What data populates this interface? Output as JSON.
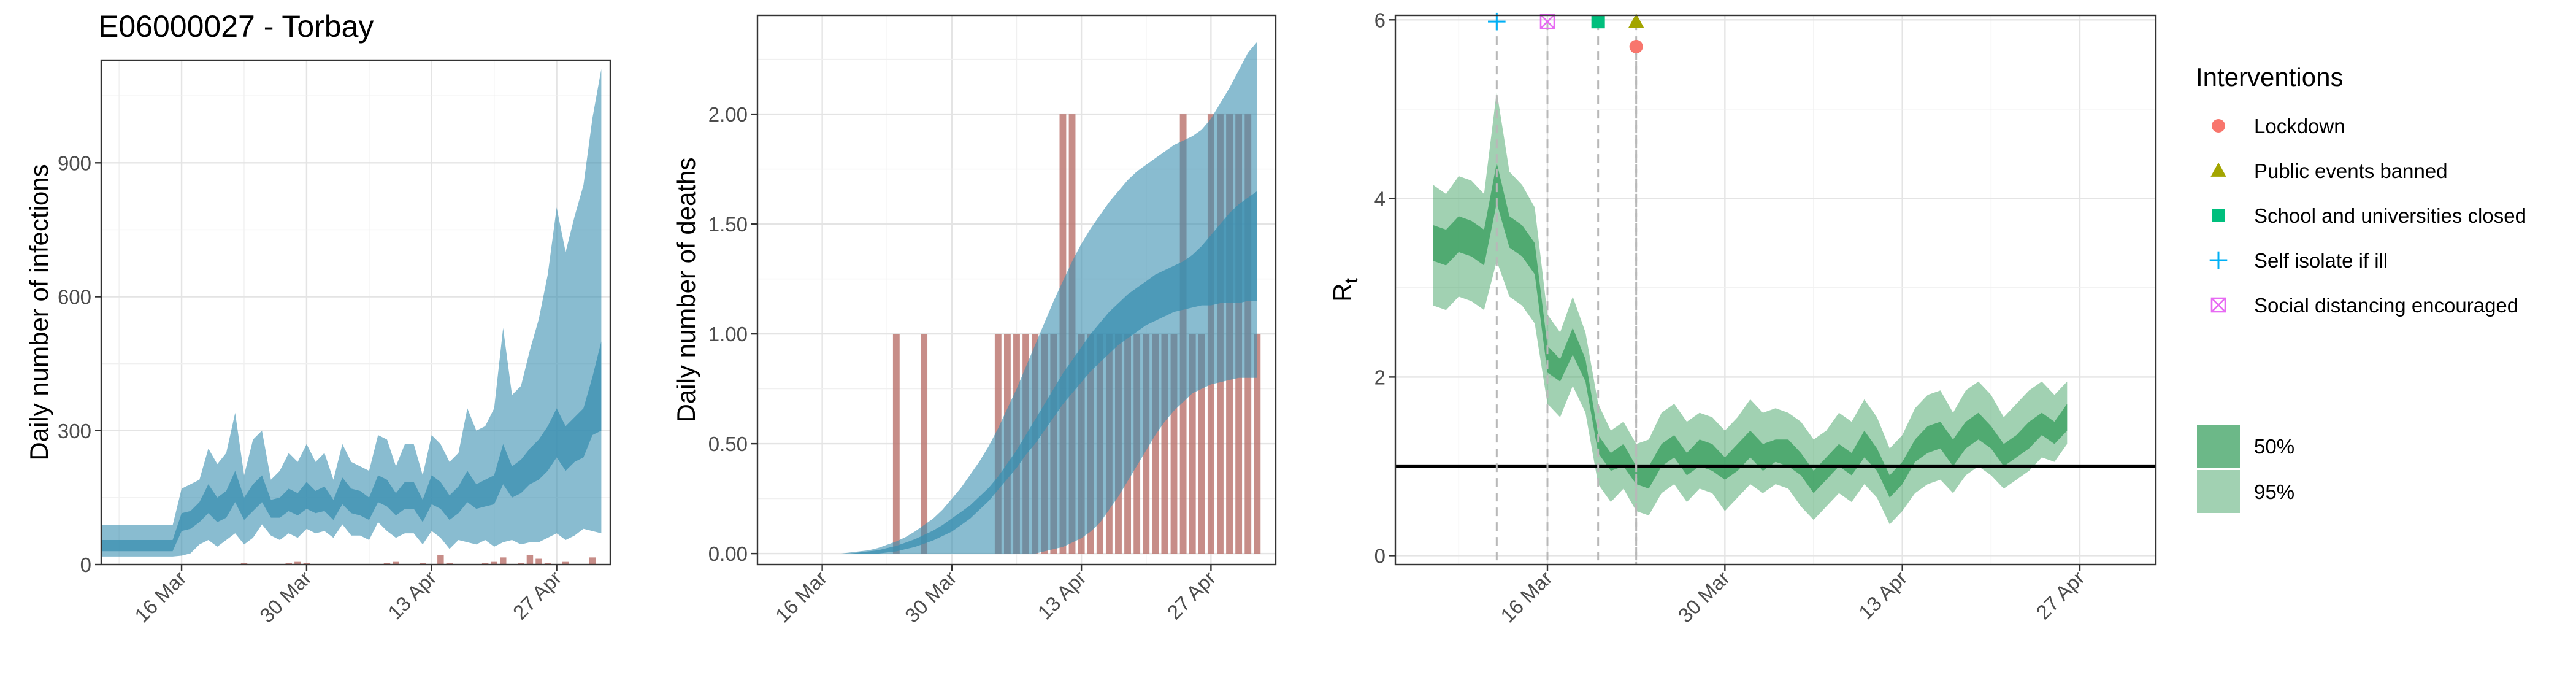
{
  "title": "E06000027 - Torbay",
  "colors": {
    "infection_band": "#3a8fb0",
    "death_bar": "#b9706a",
    "rt_band": "#2e9a55",
    "lockdown": "#f8766d",
    "public_events": "#a3a500",
    "school": "#00bf7d",
    "self_isolate": "#00b0f6",
    "social_distancing": "#e76bf3"
  },
  "chart_data": [
    {
      "type": "area",
      "panel": "infections",
      "ylabel": "Daily number of infections",
      "ylim": [
        0,
        1130
      ],
      "yticks": [
        0,
        300,
        600,
        900
      ],
      "ytick_labels": [
        "0",
        "300",
        "600",
        "900"
      ],
      "xticks": [
        "2020-03-16",
        "2020-03-30",
        "2020-04-13",
        "2020-04-27"
      ],
      "xtick_labels": [
        "16 Mar",
        "30 Mar",
        "13 Apr",
        "27 Apr"
      ],
      "x_start": "2020-03-07",
      "cases": [
        0,
        0,
        0,
        0,
        0,
        0,
        0,
        0,
        0,
        0,
        0,
        0,
        0,
        0,
        0,
        0,
        3,
        0,
        0,
        0,
        0,
        3,
        6,
        3,
        0,
        0,
        0,
        0,
        0,
        0,
        0,
        0,
        3,
        6,
        0,
        0,
        3,
        0,
        22,
        3,
        0,
        0,
        0,
        3,
        6,
        16,
        0,
        3,
        22,
        13,
        3,
        0,
        6,
        0,
        0,
        16,
        0
      ],
      "series": [
        {
          "name": "95%",
          "lower": [
            18,
            18,
            18,
            18,
            18,
            18,
            18,
            18,
            18,
            20,
            25,
            45,
            55,
            40,
            55,
            70,
            45,
            60,
            90,
            65,
            55,
            70,
            60,
            80,
            70,
            75,
            60,
            90,
            65,
            65,
            55,
            95,
            75,
            60,
            70,
            70,
            45,
            75,
            60,
            35,
            55,
            50,
            45,
            55,
            40,
            50,
            55,
            45,
            50,
            50,
            60,
            70,
            55,
            65,
            80,
            75,
            70
          ],
          "upper": [
            88,
            88,
            88,
            88,
            88,
            88,
            88,
            88,
            88,
            170,
            180,
            190,
            260,
            225,
            250,
            340,
            200,
            280,
            300,
            190,
            210,
            250,
            230,
            270,
            230,
            250,
            190,
            270,
            230,
            220,
            210,
            290,
            280,
            220,
            270,
            270,
            200,
            290,
            270,
            230,
            250,
            350,
            300,
            310,
            350,
            530,
            380,
            400,
            480,
            550,
            650,
            800,
            700,
            780,
            850,
            1000,
            1110
          ]
        },
        {
          "name": "50%",
          "lower": [
            30,
            30,
            30,
            30,
            30,
            30,
            30,
            30,
            30,
            75,
            80,
            95,
            115,
            95,
            105,
            140,
            100,
            120,
            140,
            105,
            105,
            120,
            110,
            125,
            115,
            120,
            100,
            135,
            115,
            110,
            100,
            140,
            130,
            110,
            125,
            125,
            95,
            135,
            125,
            100,
            115,
            140,
            125,
            130,
            135,
            180,
            150,
            160,
            180,
            190,
            210,
            240,
            210,
            230,
            240,
            290,
            300
          ],
          "upper": [
            55,
            55,
            55,
            55,
            55,
            55,
            55,
            55,
            55,
            115,
            120,
            140,
            180,
            150,
            165,
            210,
            150,
            180,
            200,
            145,
            150,
            170,
            160,
            185,
            165,
            175,
            145,
            195,
            170,
            165,
            150,
            200,
            190,
            160,
            185,
            185,
            145,
            200,
            185,
            155,
            175,
            210,
            180,
            190,
            200,
            270,
            220,
            235,
            260,
            280,
            310,
            350,
            310,
            330,
            350,
            420,
            500
          ]
        }
      ]
    },
    {
      "type": "area",
      "panel": "deaths",
      "ylabel": "Daily number of deaths",
      "ylim": [
        -0.05,
        2.45
      ],
      "yticks": [
        0,
        0.5,
        1,
        1.5,
        2
      ],
      "ytick_labels": [
        "0.00",
        "0.50",
        "1.00",
        "1.50",
        "2.00"
      ],
      "xticks": [
        "2020-03-16",
        "2020-03-30",
        "2020-04-13",
        "2020-04-27"
      ],
      "xtick_labels": [
        "16 Mar",
        "30 Mar",
        "13 Apr",
        "27 Apr"
      ],
      "x_start": "2020-03-14",
      "deaths": [
        0,
        0,
        0,
        0,
        0,
        0,
        0,
        0,
        0,
        0,
        1,
        0,
        0,
        1,
        0,
        0,
        0,
        0,
        0,
        0,
        0,
        1,
        1,
        1,
        1,
        1,
        1,
        1,
        2,
        2,
        1,
        1,
        1,
        1,
        1,
        1,
        1,
        1,
        1,
        1,
        1,
        2,
        1,
        1,
        2,
        2,
        2,
        2,
        2,
        1
      ],
      "series": [
        {
          "name": "95%",
          "lower": [
            0,
            0,
            0,
            0,
            0,
            0,
            0,
            0,
            0,
            0,
            0,
            0,
            0,
            0,
            0,
            0,
            0,
            0,
            0,
            0,
            0,
            0,
            0,
            0,
            0,
            0,
            0.01,
            0.02,
            0.03,
            0.05,
            0.07,
            0.1,
            0.14,
            0.2,
            0.26,
            0.33,
            0.4,
            0.47,
            0.54,
            0.6,
            0.65,
            0.69,
            0.73,
            0.75,
            0.77,
            0.78,
            0.79,
            0.8,
            0.8,
            0.8
          ],
          "upper": [
            0,
            0,
            0,
            0,
            0,
            0.005,
            0.01,
            0.015,
            0.025,
            0.04,
            0.055,
            0.075,
            0.1,
            0.13,
            0.16,
            0.2,
            0.25,
            0.3,
            0.36,
            0.42,
            0.49,
            0.57,
            0.66,
            0.75,
            0.85,
            0.95,
            1.05,
            1.15,
            1.24,
            1.33,
            1.41,
            1.48,
            1.54,
            1.6,
            1.65,
            1.7,
            1.74,
            1.77,
            1.8,
            1.83,
            1.86,
            1.88,
            1.9,
            1.93,
            1.98,
            2.05,
            2.12,
            2.2,
            2.28,
            2.33
          ]
        },
        {
          "name": "50%",
          "lower": [
            0,
            0,
            0,
            0,
            0,
            0,
            0,
            0,
            0,
            0.005,
            0.01,
            0.02,
            0.03,
            0.045,
            0.06,
            0.08,
            0.1,
            0.13,
            0.16,
            0.2,
            0.24,
            0.29,
            0.34,
            0.39,
            0.45,
            0.5,
            0.56,
            0.62,
            0.68,
            0.73,
            0.78,
            0.83,
            0.87,
            0.91,
            0.95,
            0.98,
            1.01,
            1.04,
            1.06,
            1.08,
            1.1,
            1.11,
            1.12,
            1.13,
            1.13,
            1.14,
            1.14,
            1.14,
            1.15,
            1.15
          ],
          "upper": [
            0,
            0,
            0,
            0,
            0,
            0,
            0.005,
            0.01,
            0.015,
            0.025,
            0.035,
            0.05,
            0.065,
            0.085,
            0.105,
            0.13,
            0.16,
            0.19,
            0.22,
            0.26,
            0.3,
            0.35,
            0.41,
            0.47,
            0.54,
            0.61,
            0.68,
            0.75,
            0.82,
            0.88,
            0.94,
            1,
            1.05,
            1.1,
            1.14,
            1.18,
            1.21,
            1.24,
            1.27,
            1.29,
            1.31,
            1.33,
            1.36,
            1.4,
            1.45,
            1.5,
            1.55,
            1.59,
            1.62,
            1.65
          ]
        }
      ]
    },
    {
      "type": "area",
      "panel": "rt",
      "ylabel": "R",
      "ylabel_sub": "t",
      "ylim": [
        -0.1,
        6.05
      ],
      "yticks": [
        0,
        2,
        4,
        6
      ],
      "ytick_labels": [
        "0",
        "2",
        "4",
        "6"
      ],
      "xticks": [
        "2020-03-16",
        "2020-03-30",
        "2020-04-13",
        "2020-04-27"
      ],
      "xtick_labels": [
        "16 Mar",
        "30 Mar",
        "13 Apr",
        "27 Apr"
      ],
      "x_start": "2020-03-07",
      "reference_line": 1,
      "series": [
        {
          "name": "95%",
          "lower": [
            2.8,
            2.75,
            2.9,
            2.85,
            2.75,
            3.3,
            2.9,
            2.8,
            2.6,
            1.7,
            1.55,
            1.9,
            1.6,
            0.8,
            0.6,
            0.75,
            0.5,
            0.45,
            0.7,
            0.8,
            0.6,
            0.75,
            0.7,
            0.5,
            0.65,
            0.8,
            0.7,
            0.8,
            0.75,
            0.55,
            0.4,
            0.55,
            0.7,
            0.6,
            0.8,
            0.65,
            0.35,
            0.5,
            0.7,
            0.8,
            0.85,
            0.7,
            0.9,
            1.0,
            0.9,
            0.75,
            0.85,
            0.95,
            1.1,
            1.05,
            1.25
          ],
          "upper": [
            4.15,
            4.05,
            4.25,
            4.2,
            4.05,
            5.2,
            4.3,
            4.15,
            3.9,
            2.7,
            2.5,
            2.9,
            2.5,
            1.7,
            1.4,
            1.5,
            1.25,
            1.3,
            1.6,
            1.7,
            1.5,
            1.6,
            1.55,
            1.4,
            1.55,
            1.75,
            1.6,
            1.65,
            1.6,
            1.5,
            1.3,
            1.4,
            1.6,
            1.5,
            1.75,
            1.55,
            1.2,
            1.35,
            1.65,
            1.8,
            1.85,
            1.6,
            1.85,
            1.95,
            1.8,
            1.55,
            1.7,
            1.85,
            1.95,
            1.8,
            1.95
          ]
        },
        {
          "name": "50%",
          "lower": [
            3.3,
            3.25,
            3.4,
            3.35,
            3.25,
            3.95,
            3.45,
            3.35,
            3.15,
            2.05,
            1.95,
            2.25,
            1.95,
            1.15,
            0.95,
            1.0,
            0.8,
            0.75,
            1.0,
            1.1,
            0.9,
            1.0,
            0.95,
            0.85,
            0.95,
            1.1,
            0.95,
            1.05,
            1.0,
            0.9,
            0.7,
            0.85,
            1.0,
            0.9,
            1.1,
            0.95,
            0.65,
            0.8,
            1.05,
            1.15,
            1.2,
            1.0,
            1.2,
            1.3,
            1.2,
            1.0,
            1.1,
            1.2,
            1.35,
            1.25,
            1.4
          ],
          "upper": [
            3.7,
            3.65,
            3.8,
            3.75,
            3.65,
            4.4,
            3.8,
            3.7,
            3.5,
            2.35,
            2.2,
            2.55,
            2.2,
            1.35,
            1.15,
            1.25,
            1.0,
            1.0,
            1.25,
            1.35,
            1.15,
            1.3,
            1.25,
            1.1,
            1.25,
            1.4,
            1.25,
            1.3,
            1.3,
            1.15,
            0.95,
            1.1,
            1.25,
            1.15,
            1.4,
            1.2,
            0.9,
            1.05,
            1.3,
            1.45,
            1.5,
            1.3,
            1.5,
            1.6,
            1.45,
            1.25,
            1.35,
            1.5,
            1.6,
            1.5,
            1.7
          ]
        }
      ],
      "interventions": [
        {
          "name": "Lockdown",
          "date": "2020-03-23",
          "marker": "circle",
          "color": "#f8766d",
          "y": 5.7
        },
        {
          "name": "Public events banned",
          "date": "2020-03-23",
          "marker": "triangle",
          "color": "#a3a500",
          "y": 5.98
        },
        {
          "name": "School and universities closed",
          "date": "2020-03-20",
          "marker": "square",
          "color": "#00bf7d",
          "y": 5.98
        },
        {
          "name": "Self isolate if ill",
          "date": "2020-03-12",
          "marker": "plus",
          "color": "#00b0f6",
          "y": 5.98
        },
        {
          "name": "Social distancing encouraged",
          "date": "2020-03-16",
          "marker": "boxcross",
          "color": "#e76bf3",
          "y": 5.98
        }
      ]
    }
  ],
  "legend": {
    "interventions_title": "Interventions",
    "interventions": [
      "Lockdown",
      "Public events banned",
      "School and universities closed",
      "Self isolate if ill",
      "Social distancing encouraged"
    ],
    "bands": [
      "50%",
      "95%"
    ]
  }
}
